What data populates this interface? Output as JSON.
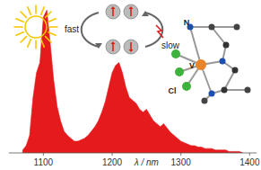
{
  "chart_data": {
    "type": "area",
    "x_label": "λ / nm",
    "color": "#e41a1c",
    "tick_labels": "x",
    "annotations": [
      "fast",
      "slow",
      "N",
      "V",
      "Cl"
    ],
    "xlim": [
      1050,
      1410
    ],
    "xticks": [
      1100,
      1200,
      1300,
      1400
    ],
    "ylim": [
      0,
      1
    ],
    "x": [
      1070,
      1075,
      1080,
      1085,
      1090,
      1095,
      1100,
      1105,
      1110,
      1115,
      1120,
      1125,
      1130,
      1135,
      1140,
      1145,
      1150,
      1155,
      1160,
      1165,
      1170,
      1175,
      1180,
      1185,
      1190,
      1195,
      1200,
      1205,
      1210,
      1215,
      1220,
      1225,
      1230,
      1235,
      1240,
      1245,
      1250,
      1255,
      1260,
      1265,
      1270,
      1275,
      1280,
      1285,
      1290,
      1295,
      1300,
      1305,
      1310,
      1315,
      1320,
      1325,
      1330,
      1335,
      1340,
      1345,
      1350,
      1355,
      1360,
      1365,
      1370,
      1375,
      1380,
      1385,
      1390
    ],
    "values": [
      0.02,
      0.05,
      0.12,
      0.38,
      0.55,
      0.62,
      0.93,
      0.98,
      0.75,
      0.5,
      0.32,
      0.22,
      0.15,
      0.12,
      0.1,
      0.08,
      0.08,
      0.09,
      0.1,
      0.12,
      0.15,
      0.18,
      0.22,
      0.28,
      0.35,
      0.45,
      0.55,
      0.6,
      0.62,
      0.55,
      0.45,
      0.38,
      0.36,
      0.34,
      0.3,
      0.28,
      0.3,
      0.26,
      0.22,
      0.2,
      0.18,
      0.2,
      0.17,
      0.14,
      0.12,
      0.1,
      0.08,
      0.07,
      0.06,
      0.05,
      0.05,
      0.04,
      0.04,
      0.03,
      0.03,
      0.03,
      0.02,
      0.02,
      0.02,
      0.02,
      0.01,
      0.01,
      0.01,
      0.01,
      0.0
    ]
  }
}
